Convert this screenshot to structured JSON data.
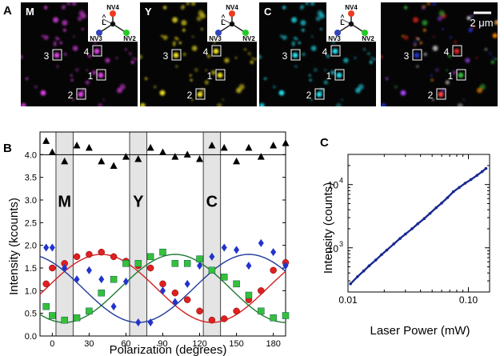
{
  "figure": {
    "panel_labels": {
      "a": "A",
      "b": "B",
      "c": "C"
    },
    "images": [
      {
        "label": "M",
        "color": "#e040e8",
        "has_inset": true
      },
      {
        "label": "Y",
        "color": "#f0e020",
        "has_inset": true
      },
      {
        "label": "C",
        "color": "#20e0f0",
        "has_inset": true
      },
      {
        "label": "",
        "color": "#ffffff",
        "has_inset": false
      }
    ],
    "nv_inset": {
      "nv4_label": "NV4",
      "nv2_label": "NV2",
      "nv3_label": "NV3",
      "l_label": "L",
      "l_hat": "^",
      "colors": {
        "nv4": "#ee3a1e",
        "nv2": "#22cc22",
        "nv3": "#3344bb",
        "center": "#111111"
      }
    },
    "scale_bar": {
      "label": "2 μm"
    },
    "roi_labels": [
      "1",
      "2",
      "3",
      "4"
    ],
    "colors": {
      "red": "#e02020",
      "green": "#35c03a",
      "blue": "#2233cc",
      "black": "#000000",
      "band": "#e4e4e4",
      "fit_blue": "#1f3a9a",
      "fit_green": "#1f7a30",
      "fit_red": "#d42020",
      "power": "#1a2a90"
    }
  },
  "chart_data": [
    {
      "type": "scatter",
      "title": "",
      "xlabel": "Polarization (degrees)",
      "ylabel": "Intensity (kcounts)",
      "xlim": [
        -10,
        190
      ],
      "ylim": [
        0,
        4.5
      ],
      "xticks": [
        0,
        30,
        60,
        90,
        120,
        150,
        180
      ],
      "yticks": [
        0.0,
        0.5,
        1.0,
        1.5,
        2.0,
        2.5,
        3.0,
        3.5,
        4.0
      ],
      "ytick_labels": [
        "0.0",
        "0.5",
        "1.0",
        "1.5",
        "2.0",
        "2.5",
        "3.0",
        "3.5",
        "4.0"
      ],
      "bands": [
        {
          "label": "M",
          "x_from": 3,
          "x_to": 17
        },
        {
          "label": "Y",
          "x_from": 63,
          "x_to": 77
        },
        {
          "label": "C",
          "x_from": 123,
          "x_to": 137
        }
      ],
      "total_line": 4.0,
      "series": [
        {
          "name": "total",
          "marker": "triangle",
          "color": "#000000",
          "x": [
            -5,
            0,
            10,
            20,
            30,
            40,
            50,
            60,
            70,
            80,
            90,
            100,
            110,
            120,
            130,
            140,
            150,
            160,
            170,
            180,
            190
          ],
          "y": [
            4.3,
            4.05,
            3.85,
            4.2,
            4.15,
            3.85,
            3.75,
            3.95,
            3.9,
            4.15,
            4.05,
            3.95,
            4.0,
            3.9,
            4.2,
            4.15,
            3.85,
            4.15,
            3.95,
            4.2,
            4.25
          ]
        },
        {
          "name": "red",
          "marker": "circle",
          "color": "#e02020",
          "x": [
            -5,
            0,
            10,
            20,
            30,
            40,
            50,
            60,
            70,
            80,
            90,
            100,
            110,
            120,
            130,
            140,
            150,
            160,
            170,
            180,
            190
          ],
          "y": [
            1.15,
            1.5,
            1.6,
            1.75,
            1.8,
            1.85,
            1.75,
            1.65,
            1.55,
            1.5,
            1.15,
            0.95,
            0.8,
            0.55,
            0.35,
            0.38,
            0.55,
            0.8,
            1.0,
            1.45,
            1.62
          ]
        },
        {
          "name": "green",
          "marker": "square",
          "color": "#35c03a",
          "x": [
            -5,
            0,
            10,
            20,
            30,
            40,
            50,
            60,
            70,
            80,
            90,
            100,
            110,
            120,
            130,
            140,
            150,
            160,
            170,
            180,
            190
          ],
          "y": [
            0.65,
            0.45,
            0.35,
            0.4,
            0.55,
            0.95,
            1.25,
            1.6,
            1.6,
            1.75,
            1.85,
            1.6,
            1.6,
            1.7,
            1.45,
            1.3,
            1.15,
            0.9,
            0.55,
            0.4,
            0.45
          ]
        },
        {
          "name": "blue",
          "marker": "diamond",
          "color": "#2233cc",
          "x": [
            -5,
            0,
            10,
            20,
            30,
            40,
            50,
            60,
            70,
            80,
            90,
            100,
            110,
            120,
            130,
            140,
            150,
            160,
            170,
            180,
            190
          ],
          "y": [
            1.95,
            1.95,
            1.5,
            1.25,
            1.45,
            1.25,
            0.65,
            1.2,
            0.3,
            0.3,
            1.0,
            0.75,
            1.15,
            1.55,
            1.75,
            1.95,
            1.9,
            1.55,
            2.05,
            1.85,
            1.55
          ]
        }
      ],
      "fits": [
        {
          "name": "red_fit",
          "color": "#d42020",
          "offset": 1.05,
          "amplitude": 0.75,
          "peak_deg": 40
        },
        {
          "name": "green_fit",
          "color": "#1f7a30",
          "offset": 1.05,
          "amplitude": 0.75,
          "peak_deg": 100
        },
        {
          "name": "blue_fit",
          "color": "#1f3a9a",
          "offset": 1.05,
          "amplitude": 0.75,
          "peak_deg": 160
        }
      ]
    },
    {
      "type": "line",
      "title": "",
      "xlabel": "Laser Power (mW)",
      "ylabel": "Intensity (counts)",
      "xscale": "log",
      "yscale": "log",
      "xlim": [
        0.01,
        0.15
      ],
      "ylim": [
        200,
        30000
      ],
      "xticks": [
        0.01,
        0.1
      ],
      "xtick_labels": [
        "0.01",
        "0.10"
      ],
      "ytick_bases": [
        "10",
        "10"
      ],
      "ytick_exps": [
        "3",
        "4"
      ],
      "yticks": [
        1000,
        10000
      ],
      "series": [
        {
          "name": "power_dependence",
          "color": "#1a2a90",
          "x": [
            0.0105,
            0.012,
            0.0135,
            0.015,
            0.017,
            0.019,
            0.021,
            0.024,
            0.027,
            0.03,
            0.034,
            0.038,
            0.043,
            0.048,
            0.054,
            0.06,
            0.067,
            0.075,
            0.084,
            0.094,
            0.105,
            0.118,
            0.13,
            0.14
          ],
          "y": [
            270,
            350,
            430,
            520,
            640,
            780,
            920,
            1150,
            1400,
            1650,
            2000,
            2400,
            2900,
            3500,
            4300,
            5100,
            6200,
            7700,
            9000,
            10500,
            12000,
            14000,
            16000,
            18000
          ]
        }
      ]
    }
  ]
}
